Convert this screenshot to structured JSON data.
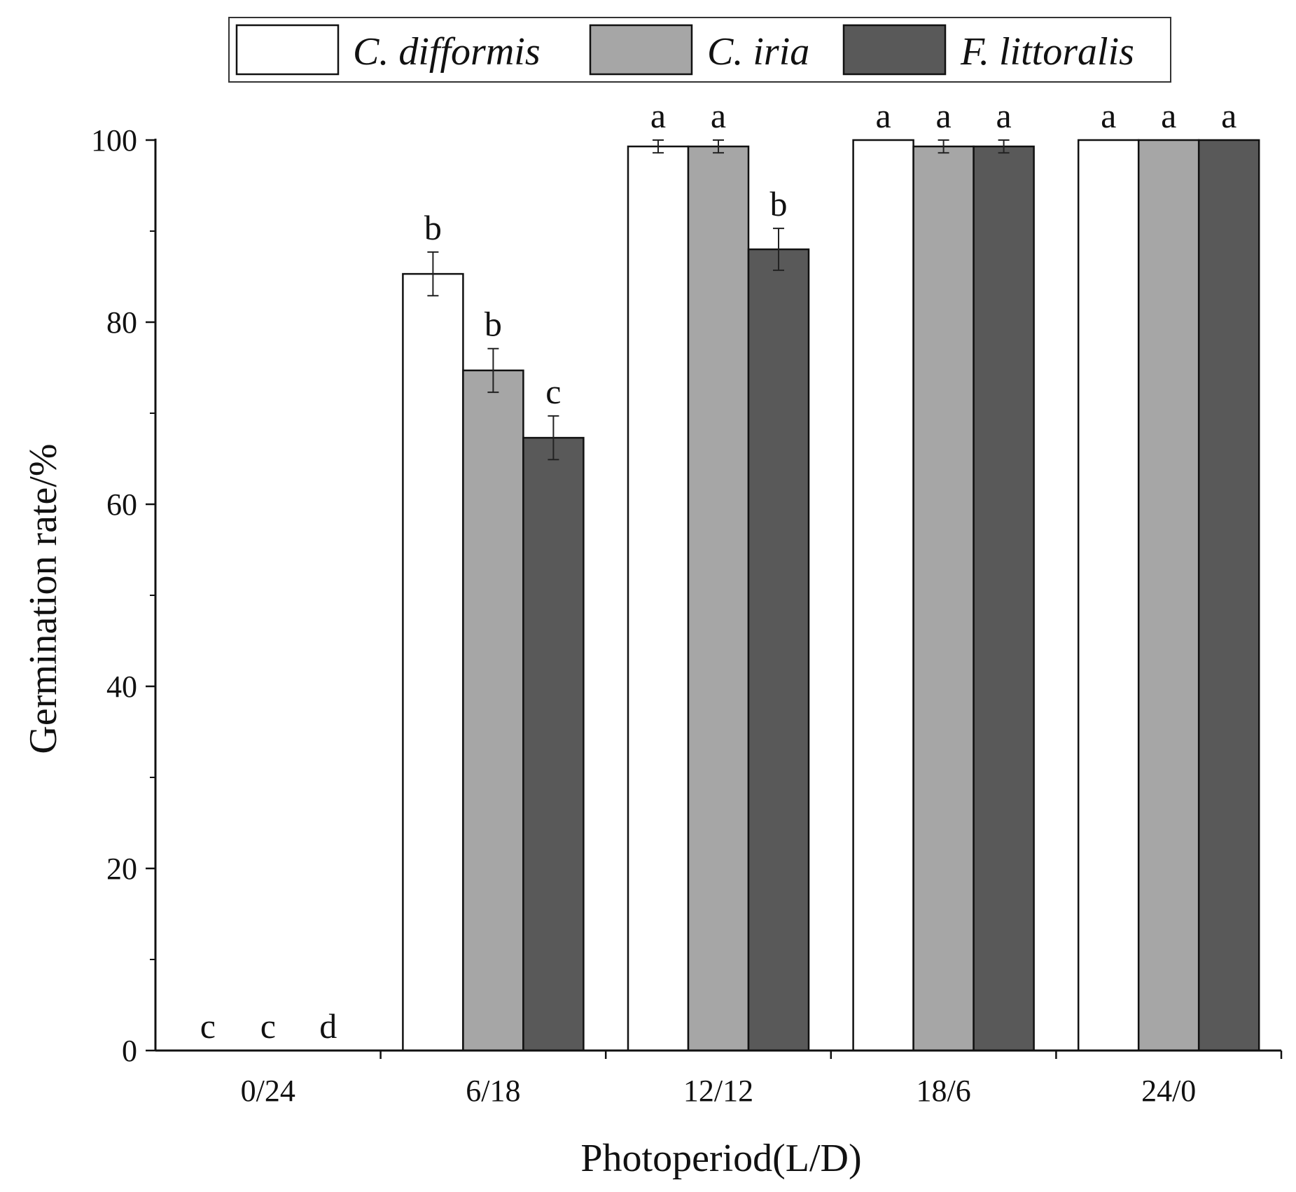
{
  "chart_data": {
    "type": "bar",
    "title": "",
    "xlabel": "Photoperiod(L/D)",
    "ylabel": "Germination rate/%",
    "ylim": [
      0,
      100
    ],
    "yticks": [
      0,
      20,
      40,
      60,
      80,
      100
    ],
    "grid": false,
    "legend_position": "top-center",
    "categories": [
      "0/24",
      "6/18",
      "12/12",
      "18/6",
      "24/0"
    ],
    "series": [
      {
        "name": "C. difformis",
        "color": "#ffffff",
        "values": [
          0,
          85.3,
          99.3,
          100,
          100
        ],
        "errors": [
          0,
          2.4,
          0.7,
          0,
          0
        ],
        "significance": [
          "c",
          "b",
          "a",
          "a",
          "a"
        ]
      },
      {
        "name": "C. iria",
        "color": "#a6a6a6",
        "values": [
          0,
          74.7,
          99.3,
          99.3,
          100
        ],
        "errors": [
          0,
          2.4,
          0.7,
          0.7,
          0
        ],
        "significance": [
          "c",
          "b",
          "a",
          "a",
          "a"
        ]
      },
      {
        "name": "F. littoralis",
        "color": "#595959",
        "values": [
          0,
          67.3,
          88.0,
          99.3,
          100
        ],
        "errors": [
          0,
          2.4,
          2.3,
          0.7,
          0
        ],
        "significance": [
          "d",
          "c",
          "b",
          "a",
          "a"
        ]
      }
    ]
  }
}
